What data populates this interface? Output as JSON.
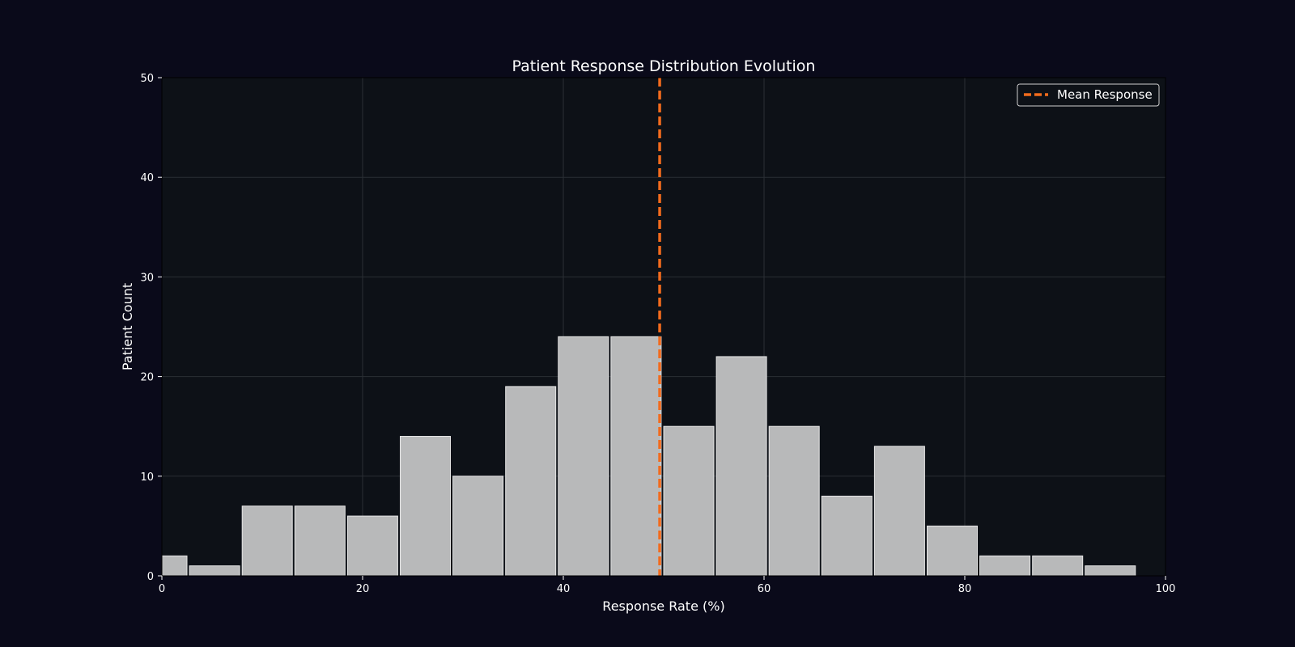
{
  "chart_data": {
    "type": "bar",
    "title": "Patient Response Distribution Evolution",
    "xlabel": "Response Rate (%)",
    "ylabel": "Patient Count",
    "xlim": [
      0,
      100
    ],
    "ylim": [
      0,
      50
    ],
    "xticks": [
      0,
      20,
      40,
      60,
      80,
      100
    ],
    "yticks": [
      0,
      10,
      20,
      30,
      40,
      50
    ],
    "grid": true,
    "bins": [
      {
        "start": -2.5,
        "end": 2.5,
        "count": 2
      },
      {
        "start": 2.75,
        "end": 7.75,
        "count": 1
      },
      {
        "start": 8.0,
        "end": 13.0,
        "count": 7
      },
      {
        "start": 13.25,
        "end": 18.25,
        "count": 7
      },
      {
        "start": 18.5,
        "end": 23.5,
        "count": 6
      },
      {
        "start": 23.75,
        "end": 28.75,
        "count": 14
      },
      {
        "start": 29.0,
        "end": 34.0,
        "count": 10
      },
      {
        "start": 34.25,
        "end": 39.25,
        "count": 19
      },
      {
        "start": 39.5,
        "end": 44.5,
        "count": 24
      },
      {
        "start": 44.75,
        "end": 49.75,
        "count": 24
      },
      {
        "start": 50.0,
        "end": 55.0,
        "count": 15
      },
      {
        "start": 55.25,
        "end": 60.25,
        "count": 22
      },
      {
        "start": 60.5,
        "end": 65.5,
        "count": 15
      },
      {
        "start": 65.75,
        "end": 70.75,
        "count": 8
      },
      {
        "start": 71.0,
        "end": 76.0,
        "count": 13
      },
      {
        "start": 76.25,
        "end": 81.25,
        "count": 5
      },
      {
        "start": 81.5,
        "end": 86.5,
        "count": 2
      },
      {
        "start": 86.75,
        "end": 91.75,
        "count": 2
      },
      {
        "start": 92.0,
        "end": 97.0,
        "count": 1
      }
    ],
    "mean_line": {
      "x": 49.6,
      "label": "Mean Response",
      "color": "#f26b1d"
    },
    "legend": {
      "position": "top-right",
      "entries": [
        "Mean Response"
      ]
    },
    "colors": {
      "page_background": "#0a0a1a",
      "plot_background": "#0d1117",
      "bar_fill": "#b8b9ba",
      "bar_edge": "#e6e6e6",
      "grid": "#2a2f35",
      "text": "#ffffff"
    }
  }
}
